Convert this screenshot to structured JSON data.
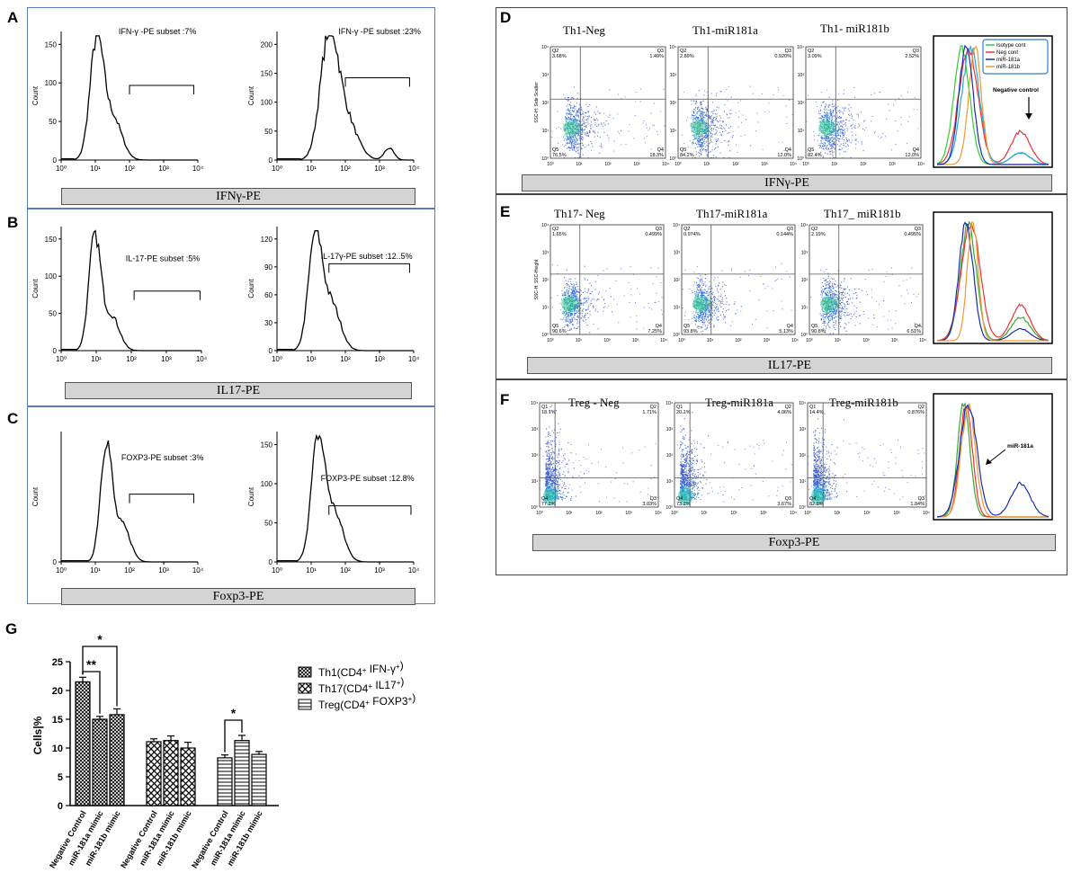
{
  "panels": {
    "A": "A",
    "B": "B",
    "C": "C",
    "D": "D",
    "E": "E",
    "F": "F",
    "G": "G"
  },
  "histograms": {
    "A": {
      "axis_label": "IFNγ-PE",
      "ylabel": "Count",
      "left": {
        "annotation": "IFN-γ -PE subset :7%",
        "yticks": [
          "0",
          "50",
          "100",
          "150"
        ]
      },
      "right": {
        "annotation": "IFN-γ -PE subset :23%",
        "yticks": [
          "0",
          "50",
          "100",
          "150",
          "200"
        ]
      }
    },
    "B": {
      "axis_label": "IL17-PE",
      "ylabel": "Count",
      "left": {
        "annotation": "IL-17-PE subset :5%",
        "yticks": [
          "0",
          "50",
          "100",
          "150"
        ]
      },
      "right": {
        "annotation": "IL-17γ-PE subset :12..5%",
        "yticks": [
          "0",
          "30",
          "60",
          "90",
          "120"
        ]
      }
    },
    "C": {
      "axis_label": "Foxp3-PE",
      "ylabel": "Count",
      "left": {
        "annotation": "FOXP3-PE subset :3%",
        "yticks": [
          "0"
        ]
      },
      "right": {
        "annotation": "FOXP3-PE subset :12.8%",
        "yticks": [
          "0",
          "50",
          "100",
          "150"
        ]
      }
    },
    "xticks": [
      "10⁰",
      "10¹",
      "10²",
      "10³",
      "10⁴"
    ]
  },
  "flow": {
    "D": {
      "axis_label": "IFNγ-PE",
      "ylabel": "SSC-H: Side Scatter",
      "titles": [
        "Th1-Neg",
        "Th1-miR181a",
        "Th1- miR181b"
      ],
      "quadrants": [
        {
          "tl_id": "Q2",
          "tl": "3.68%",
          "tr_id": "Q3",
          "tr": "1.49%",
          "bl_id": "Q5",
          "bl": "76.5%",
          "br_id": "Q4",
          "br": "18.3%"
        },
        {
          "tl_id": "Q2",
          "tl": "2.89%",
          "tr_id": "Q3",
          "tr": "0.920%",
          "bl_id": "Q5",
          "bl": "84.2%",
          "br_id": "Q4",
          "br": "12.0%"
        },
        {
          "tl_id": "Q2",
          "tl": "3.09%",
          "tr_id": "Q3",
          "tr": "2.52%",
          "bl_id": "Q5",
          "bl": "82.4%",
          "br_id": "Q4",
          "br": "12.0%"
        }
      ],
      "legend": [
        "Isotype cont",
        "Neg cont",
        "miR-181a",
        "miR-181b"
      ],
      "annotation": "Negative control"
    },
    "E": {
      "axis_label": "IL17-PE",
      "ylabel": "SSC-H: SSC-Height",
      "titles": [
        "Th17- Neg",
        "Th17-miR181a",
        "Th17_ miR181b"
      ],
      "quadrants": [
        {
          "tl_id": "Q2",
          "tl": "1.65%",
          "tr_id": "Q3",
          "tr": "0.499%",
          "bl_id": "Q5",
          "bl": "90.6%",
          "br_id": "Q4",
          "br": "7.25%"
        },
        {
          "tl_id": "Q2",
          "tl": "0.974%",
          "tr_id": "Q3",
          "tr": "0.144%",
          "bl_id": "Q5",
          "bl": "93.8%",
          "br_id": "Q4",
          "br": "5.13%"
        },
        {
          "tl_id": "Q2",
          "tl": "2.19%",
          "tr_id": "Q3",
          "tr": "0.495%",
          "bl_id": "Q5",
          "bl": "90.8%",
          "br_id": "Q4",
          "br": "6.51%"
        }
      ]
    },
    "F": {
      "axis_label": "Foxp3-PE",
      "ylabel": "",
      "titles": [
        "Treg - Neg",
        "Treg-miR181a",
        "Treg-miR181b"
      ],
      "quadrants": [
        {
          "tl_id": "Q1",
          "tl": "18.1%",
          "tr_id": "Q2",
          "tr": "1.71%",
          "bl_id": "Q4",
          "bl": "77.2%",
          "br_id": "Q3",
          "br": "3.03%"
        },
        {
          "tl_id": "Q1",
          "tl": "20.1%",
          "tr_id": "Q2",
          "tr": "4.06%",
          "bl_id": "Q4",
          "bl": "73.2%",
          "br_id": "Q3",
          "br": "3.67%"
        },
        {
          "tl_id": "Q1",
          "tl": "14.4%",
          "tr_id": "Q2",
          "tr": "0.876%",
          "bl_id": "Q4",
          "bl": "82.9%",
          "br_id": "Q3",
          "br": "1.84%"
        }
      ],
      "annotation": "miR-181a"
    },
    "xticks": [
      "10⁰",
      "10¹",
      "10²",
      "10³",
      "10⁴"
    ]
  },
  "chart_data": {
    "type": "bar",
    "ylabel": "Cells|%",
    "ylim": [
      0,
      25
    ],
    "yticks": [
      0,
      5,
      10,
      15,
      20,
      25
    ],
    "categories": [
      "Negative Control",
      "miR-181a mimic",
      "miR-181b mimic",
      "Negative Control",
      "miR-181a mimic",
      "miR-181b mimic",
      "Negative Control",
      "miR-181a mimic",
      "miR-181b mimic"
    ],
    "groups": [
      {
        "name": "Th1(CD4+ IFN-γ+)",
        "legend_main": "Th1(CD4",
        "legend_s1": "+",
        "legend_mid": " IFN-γ",
        "legend_s2": "+",
        "legend_end": ")",
        "values": [
          21.5,
          15.0,
          15.8
        ],
        "errors": [
          0.8,
          0.5,
          1.0
        ]
      },
      {
        "name": "Th17(CD4+ IL17+)",
        "legend_main": "Th17(CD4",
        "legend_s1": "+",
        "legend_mid": " IL17",
        "legend_s2": "+",
        "legend_end": ")",
        "values": [
          11.1,
          11.3,
          10.0
        ],
        "errors": [
          0.5,
          0.8,
          1.0
        ]
      },
      {
        "name": "Treg(CD4+ FOXP3+)",
        "legend_main": "Treg(CD4",
        "legend_s1": "+",
        "legend_mid": " FOXP3",
        "legend_s2": "+",
        "legend_end": ")",
        "values": [
          8.3,
          11.3,
          8.9
        ],
        "errors": [
          0.5,
          0.9,
          0.5
        ]
      }
    ],
    "significance": [
      "*",
      "**",
      "*"
    ]
  }
}
